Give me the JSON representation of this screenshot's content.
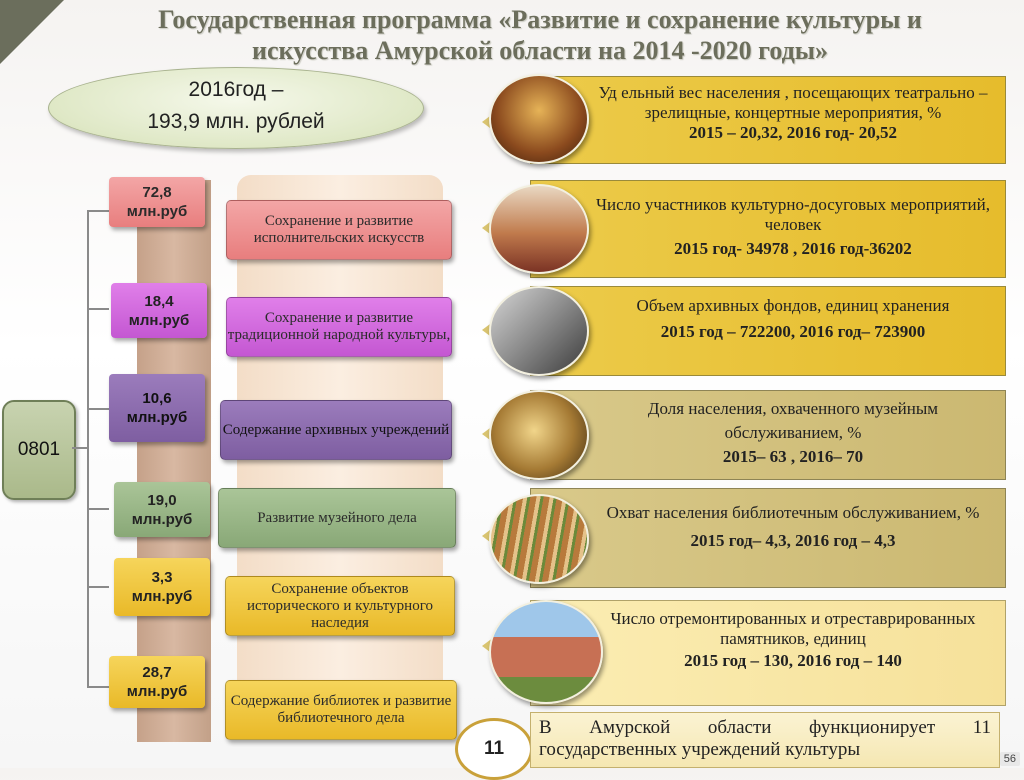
{
  "title_line1": "Государственная программа «Развитие  и сохранение культуры  и",
  "title_line2": "искусства Амурской области на 2014 -2020 годы»",
  "budget": {
    "line1": "2016год –",
    "line2": "193,9 млн. рублей"
  },
  "code": "0801",
  "allocations": [
    {
      "amount": "72,8\nмлн.руб",
      "program": "Сохранение и развитие исполнительских искусств",
      "color": "#f3a6a6"
    },
    {
      "amount": "18,4\nмлн.руб",
      "program": "Сохранение и развитие традиционной народной культуры,",
      "color": "#d66ae0"
    },
    {
      "amount": "10,6\nмлн.руб",
      "program": "Содержание архивных учреждений",
      "color": "#8b6cae"
    },
    {
      "amount": "19,0\nмлн.руб",
      "program": "Развитие музейного дела",
      "color": "#9bb888"
    },
    {
      "amount": "3,3\nмлн.руб",
      "program": "Сохранение объектов исторического и культурного  наследия",
      "color": "#f0c83a"
    },
    {
      "amount": "28,7\nмлн.руб",
      "program": "Содержание библиотек и развитие библиотечного дела",
      "color": "#f0c83a"
    }
  ],
  "indicators": [
    {
      "text": "Уд ельный вес населения , посещающих театрально –зрелищные, концертные  мероприятия, %",
      "years": "2015  – 20,32,      2016 год- 20,52",
      "photo": "theatre-photo"
    },
    {
      "text": "Число участников культурно-досуговых мероприятий, человек",
      "years": "2015 год- 34978 ,  2016 год-36202",
      "photo": "folk-ensemble-photo"
    },
    {
      "text": "Объем архивных фондов, единиц хранения",
      "years": "2015 год – 722200,  2016 год– 723900",
      "photo": "archive-photo"
    },
    {
      "text": "Доля населения, охваченного музейным обслуживанием, %",
      "years": "2015– 63 ,     2016– 70",
      "photo": "museum-photo"
    },
    {
      "text": "Охват населения библиотечным обслуживанием, %",
      "years": "2015 год– 4,3,     2016 год – 4,3",
      "photo": "library-photo"
    },
    {
      "text": "Число отремонтированных и отреставрированных памятников, единиц",
      "years": "2015 год – 130,   2016 год – 140",
      "photo": "monument-photo"
    }
  ],
  "institutions_count": "11",
  "note": "В  Амурской  области  функционирует  11 государственных учреждений культуры",
  "slide_number": "56"
}
